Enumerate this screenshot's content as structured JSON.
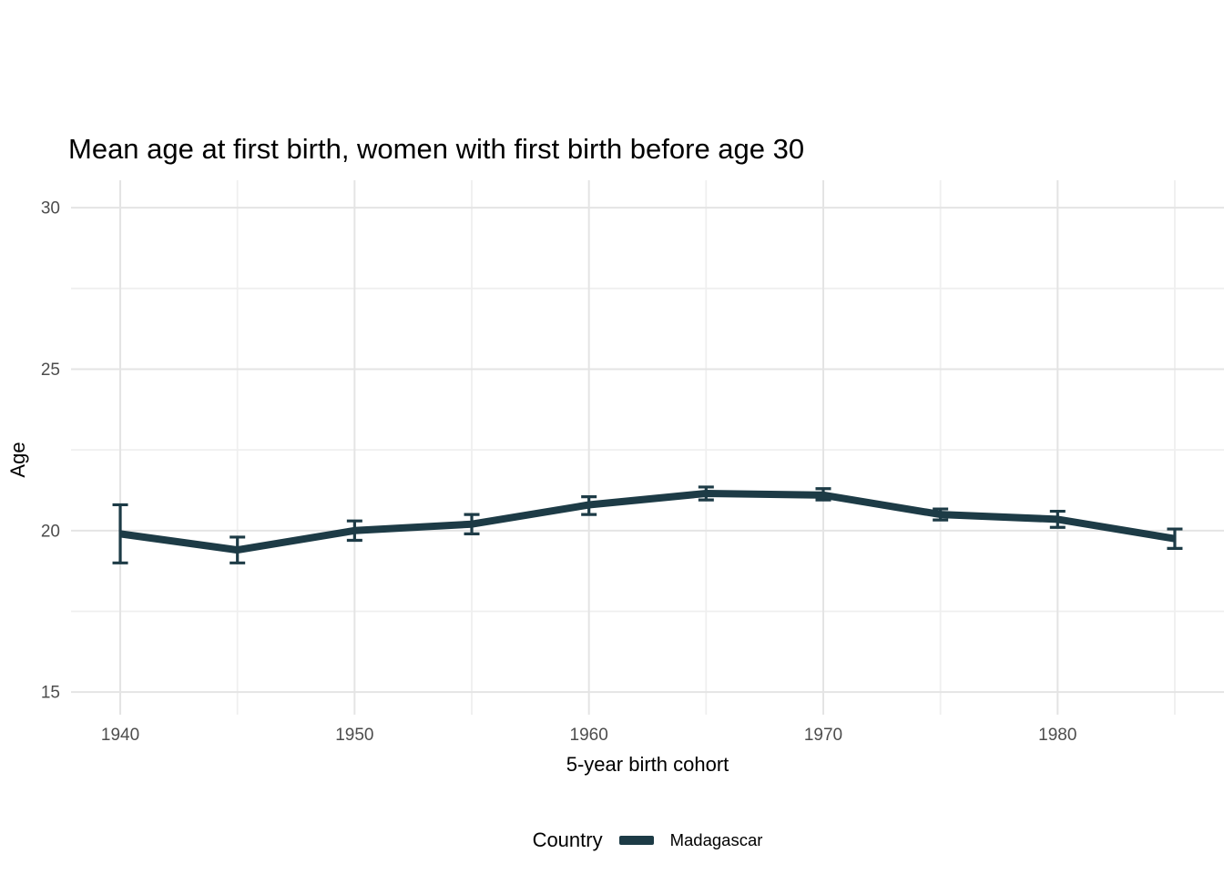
{
  "figure": {
    "title": "Mean age at first birth, women with first birth before age 30",
    "x_axis_title": "5-year birth cohort",
    "y_axis_title": "Age",
    "legend": {
      "title": "Country",
      "items": [
        {
          "label": "Madagascar",
          "color": "#1d3b46"
        }
      ]
    }
  },
  "theme": {
    "background_color": "#ffffff",
    "title_color": "#000000",
    "axis_title_color": "#000000",
    "tick_label_color": "#4d4d4d",
    "grid_major_color": "#e4e4e4",
    "grid_minor_color": "#efefef",
    "accent_color": "#1d3b46"
  },
  "chart_data": {
    "type": "line",
    "title": "Mean age at first birth, women with first birth before age 30",
    "xlabel": "5-year birth cohort",
    "ylabel": "Age",
    "grid": true,
    "legend_position": "bottom",
    "error_bars": true,
    "x_ticks": [
      1940,
      1950,
      1960,
      1970,
      1980
    ],
    "x_minor_ticks": [
      1945,
      1955,
      1965,
      1975,
      1985
    ],
    "y_ticks": [
      15,
      20,
      25,
      30
    ],
    "y_minor_ticks": [
      17.5,
      22.5,
      27.5
    ],
    "xlim": [
      1937.9,
      1987.1
    ],
    "ylim": [
      14.3,
      30.85
    ],
    "series": [
      {
        "name": "Madagascar",
        "color": "#1d3b46",
        "x": [
          1940,
          1945,
          1950,
          1955,
          1960,
          1965,
          1970,
          1975,
          1980,
          1985
        ],
        "y": [
          19.9,
          19.4,
          20.0,
          20.2,
          20.8,
          21.15,
          21.1,
          20.5,
          20.35,
          19.75
        ],
        "ci_low": [
          19.0,
          19.0,
          19.7,
          19.9,
          20.5,
          20.95,
          20.95,
          20.33,
          20.1,
          19.45
        ],
        "ci_high": [
          20.8,
          19.8,
          20.3,
          20.5,
          21.05,
          21.35,
          21.3,
          20.67,
          20.6,
          20.05
        ]
      }
    ]
  }
}
